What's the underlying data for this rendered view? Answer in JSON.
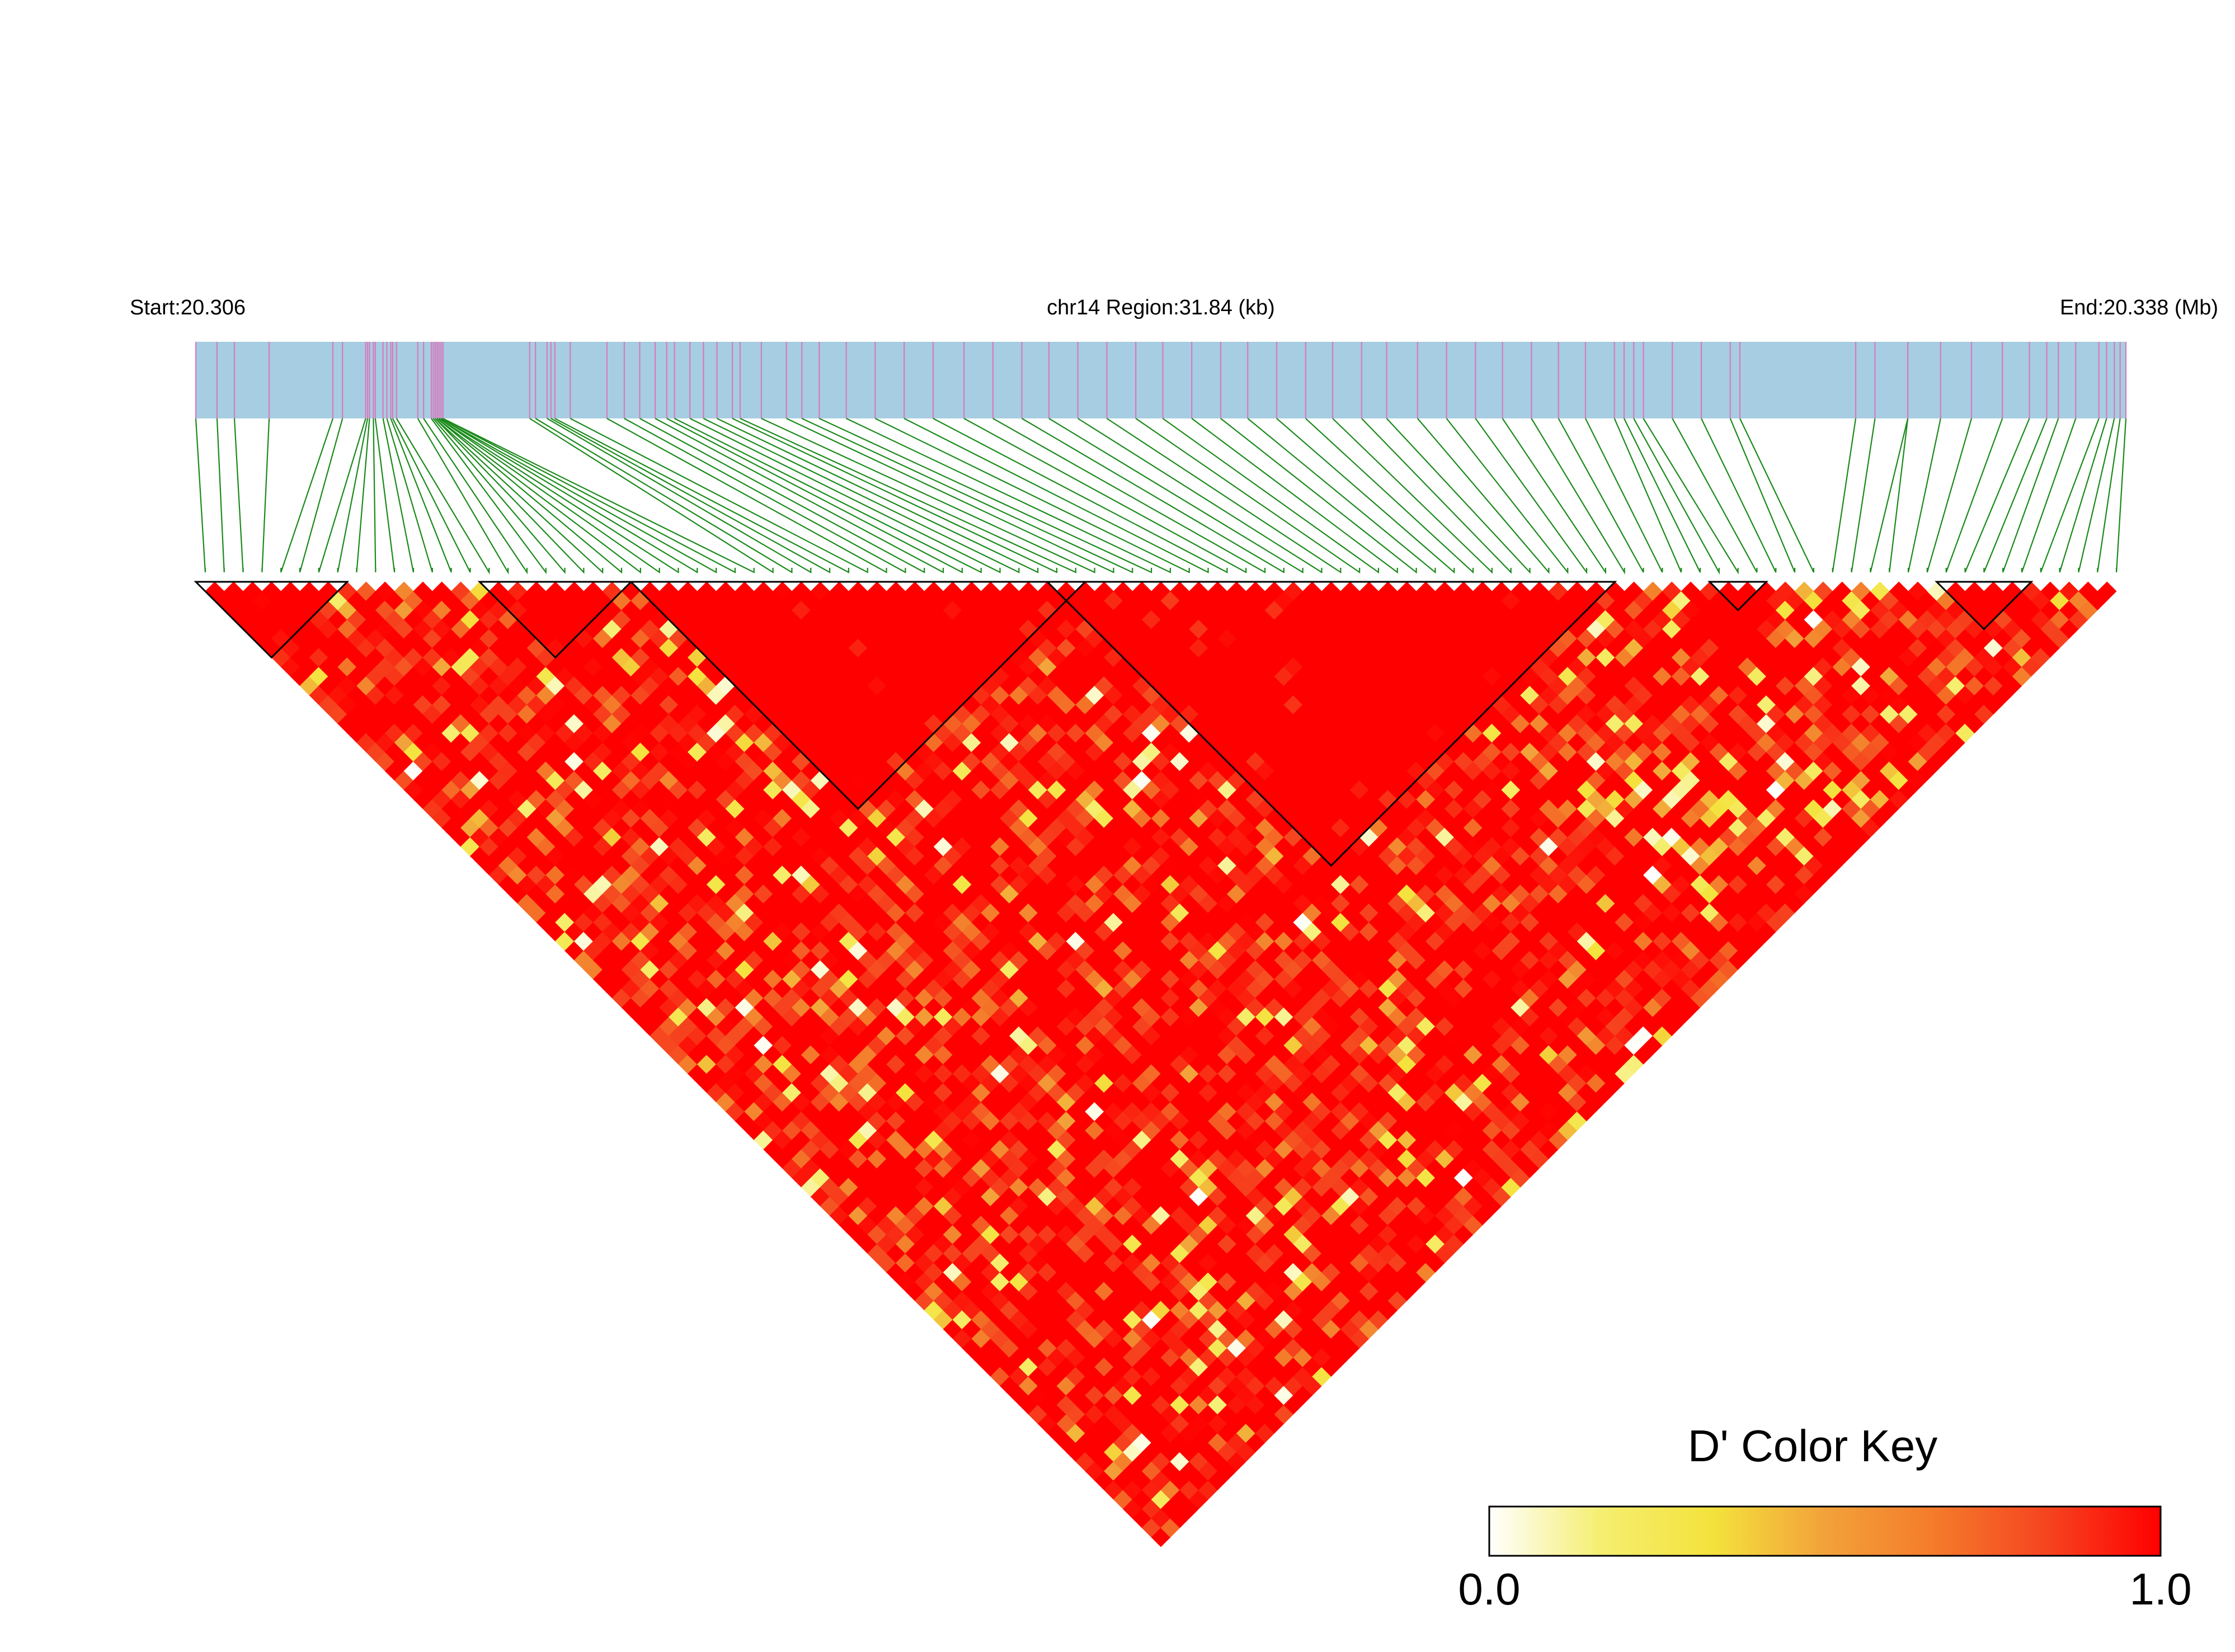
{
  "chart_data": {
    "type": "heatmap",
    "subtype": "linkage-disequilibrium-triangle",
    "header": {
      "start_label": "Start:20.306",
      "region_label": "chr14 Region:31.84 (kb)",
      "end_label": "End:20.338 (Mb)"
    },
    "region": {
      "chromosome": "chr14",
      "start_mb": 20.306,
      "end_mb": 20.338,
      "length_kb": 31.84
    },
    "snp_count": 102,
    "snp_positions_relative": [
      0.0,
      0.011,
      0.02,
      0.038,
      0.071,
      0.076,
      0.088,
      0.089,
      0.09,
      0.092,
      0.093,
      0.097,
      0.099,
      0.101,
      0.102,
      0.104,
      0.115,
      0.118,
      0.122,
      0.123,
      0.124,
      0.124,
      0.125,
      0.125,
      0.126,
      0.126,
      0.127,
      0.127,
      0.128,
      0.128,
      0.173,
      0.176,
      0.182,
      0.184,
      0.186,
      0.194,
      0.213,
      0.222,
      0.23,
      0.238,
      0.244,
      0.248,
      0.256,
      0.263,
      0.27,
      0.278,
      0.282,
      0.293,
      0.306,
      0.314,
      0.323,
      0.337,
      0.352,
      0.367,
      0.382,
      0.398,
      0.413,
      0.428,
      0.442,
      0.457,
      0.472,
      0.487,
      0.501,
      0.516,
      0.531,
      0.545,
      0.56,
      0.575,
      0.589,
      0.604,
      0.617,
      0.633,
      0.648,
      0.663,
      0.677,
      0.692,
      0.706,
      0.72,
      0.735,
      0.74,
      0.745,
      0.75,
      0.765,
      0.78,
      0.795,
      0.8,
      0.86,
      0.87,
      0.887,
      0.887,
      0.904,
      0.92,
      0.936,
      0.95,
      0.959,
      0.965,
      0.974,
      0.986,
      0.99,
      0.994,
      0.997,
      1.0
    ],
    "blocks": [
      {
        "snp_start": 0,
        "snp_end": 7
      },
      {
        "snp_start": 15,
        "snp_end": 22
      },
      {
        "snp_start": 23,
        "snp_end": 46
      },
      {
        "snp_start": 45,
        "snp_end": 74
      },
      {
        "snp_start": 80,
        "snp_end": 82
      },
      {
        "snp_start": 92,
        "snp_end": 96
      }
    ],
    "values_summary": {
      "metric": "D'",
      "range": [
        0.0,
        1.0
      ],
      "typical": 0.92,
      "note": "Pairwise D' for all 102 SNP pairs; matrix is overwhelmingly strong LD (red) with scattered weak-LD (yellow/white) cells concentrated along bands near the right block boundary."
    },
    "color_key": {
      "title": "D' Color Key",
      "min_label": "0.0",
      "max_label": "1.0",
      "stops": [
        "#ffffff",
        "#f5ee70",
        "#f4e23c",
        "#f2a23a",
        "#f47a2a",
        "#f6431f",
        "#ff0000"
      ]
    },
    "colors": {
      "region_bar": "#a6cde1",
      "snp_tick": "#d67bbd",
      "snp_connector": "#1a8a1a",
      "strong_ld": "#ff0000",
      "block_outline": "#000000"
    }
  }
}
